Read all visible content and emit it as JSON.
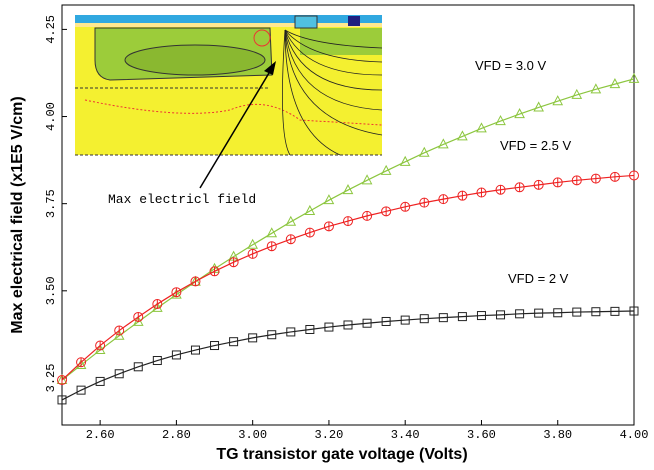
{
  "chart_data": {
    "type": "line",
    "x_label": "TG transistor gate voltage (Volts)",
    "y_label": "Max electrical field (x1E5 V/cm)",
    "annotation": "Max electricl field",
    "xlim": [
      2.5,
      4.0
    ],
    "ylim": [
      3.115,
      4.32
    ],
    "xticks": [
      {
        "value": 2.6,
        "label": "2.60"
      },
      {
        "value": 2.8,
        "label": "2.80"
      },
      {
        "value": 3.0,
        "label": "3.00"
      },
      {
        "value": 3.2,
        "label": "3.20"
      },
      {
        "value": 3.4,
        "label": "3.40"
      },
      {
        "value": 3.6,
        "label": "3.60"
      },
      {
        "value": 3.8,
        "label": "3.80"
      },
      {
        "value": 4.0,
        "label": "4.00"
      }
    ],
    "yticks": [
      3.25,
      {
        "value": 3.5,
        "label": "3.50"
      },
      3.75,
      {
        "value": 4.0,
        "label": "4.00"
      },
      4.25
    ],
    "grid": false,
    "x": [
      2.5,
      2.55,
      2.6,
      2.65,
      2.7,
      2.75,
      2.8,
      2.85,
      2.9,
      2.95,
      3.0,
      3.05,
      3.1,
      3.15,
      3.2,
      3.25,
      3.3,
      3.35,
      3.4,
      3.45,
      3.5,
      3.55,
      3.6,
      3.65,
      3.7,
      3.75,
      3.8,
      3.85,
      3.9,
      3.95,
      4.0
    ],
    "series": [
      {
        "name": "VFD = 3.0 V",
        "color": "#8cc63f",
        "marker": "triangle",
        "values": [
          3.244,
          3.287,
          3.33,
          3.371,
          3.411,
          3.451,
          3.489,
          3.526,
          3.563,
          3.598,
          3.632,
          3.665,
          3.698,
          3.729,
          3.76,
          3.789,
          3.817,
          3.844,
          3.87,
          3.896,
          3.92,
          3.943,
          3.966,
          3.987,
          4.007,
          4.026,
          4.044,
          4.062,
          4.078,
          4.093,
          4.108
        ]
      },
      {
        "name": "VFD = 2.5 V",
        "color": "#ee2222",
        "marker": "circle",
        "values": [
          3.244,
          3.295,
          3.343,
          3.386,
          3.425,
          3.462,
          3.496,
          3.527,
          3.556,
          3.582,
          3.606,
          3.628,
          3.648,
          3.667,
          3.685,
          3.7,
          3.715,
          3.728,
          3.741,
          3.753,
          3.763,
          3.773,
          3.782,
          3.79,
          3.797,
          3.804,
          3.811,
          3.817,
          3.822,
          3.827,
          3.831
        ]
      },
      {
        "name": "VFD = 2 V",
        "color": "#222222",
        "marker": "square",
        "values": [
          3.187,
          3.215,
          3.24,
          3.262,
          3.282,
          3.3,
          3.316,
          3.33,
          3.343,
          3.354,
          3.365,
          3.374,
          3.382,
          3.389,
          3.396,
          3.402,
          3.407,
          3.412,
          3.416,
          3.42,
          3.423,
          3.426,
          3.429,
          3.431,
          3.434,
          3.436,
          3.437,
          3.439,
          3.44,
          3.441,
          3.442
        ]
      }
    ]
  }
}
